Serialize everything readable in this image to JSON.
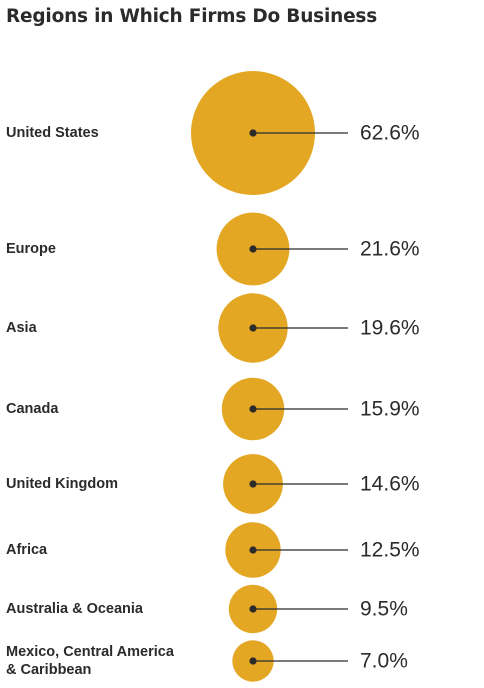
{
  "chart_data": {
    "type": "bubble",
    "title": "Regions in Which Firms Do Business",
    "categories": [
      [
        "United States"
      ],
      [
        "Europe"
      ],
      [
        "Asia"
      ],
      [
        "Canada"
      ],
      [
        "United Kingdom"
      ],
      [
        "Africa"
      ],
      [
        "Australia & Oceania"
      ],
      [
        "Mexico, Central America",
        "& Caribbean"
      ]
    ],
    "values": [
      62.6,
      21.6,
      19.6,
      15.9,
      14.6,
      12.5,
      9.5,
      7.0
    ],
    "value_labels": [
      "62.6%",
      "21.6%",
      "19.6%",
      "15.9%",
      "14.6%",
      "12.5%",
      "9.5%",
      "7.0%"
    ],
    "unit": "%",
    "bubble_color": "#E3A724",
    "dot_color": "#2b2b2b",
    "line_color": "#2b2b2b",
    "grid": false,
    "legend": "none"
  }
}
